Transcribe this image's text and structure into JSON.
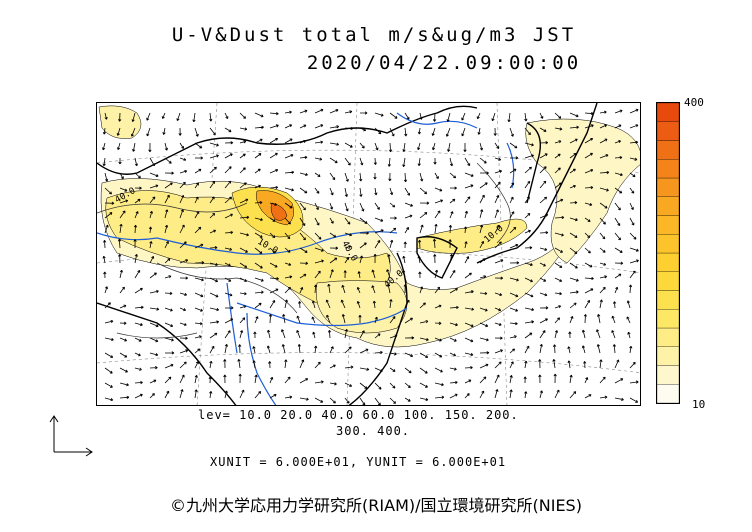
{
  "title": {
    "line1": "U-V&Dust total m/s&ug/m3 JST",
    "line2": "2020/04/22.09:00:00"
  },
  "colorbar": {
    "max_label": "400",
    "min_label": "10",
    "colors": [
      "#fefcf0",
      "#fef7cd",
      "#fef2a8",
      "#feed86",
      "#fde866",
      "#fde04d",
      "#fdd83b",
      "#fdcf30",
      "#fcc42a",
      "#fbb726",
      "#f9a822",
      "#f7961e",
      "#f4831a",
      "#f07016",
      "#ec5c12",
      "#e84a0e"
    ]
  },
  "levels": {
    "line1": "lev= 10.0 20.0 40.0 60.0 100. 150. 200.",
    "line2": "300. 400."
  },
  "units_line": "XUNIT = 6.000E+01, YUNIT = 6.000E+01",
  "map": {
    "contour_labels": [
      "40.0",
      "10.0",
      "10.0",
      "40.0",
      "40.0"
    ]
  },
  "copyright": "©九州大学応用力学研究所(RIAM)/国立環境研究所(NIES)"
}
